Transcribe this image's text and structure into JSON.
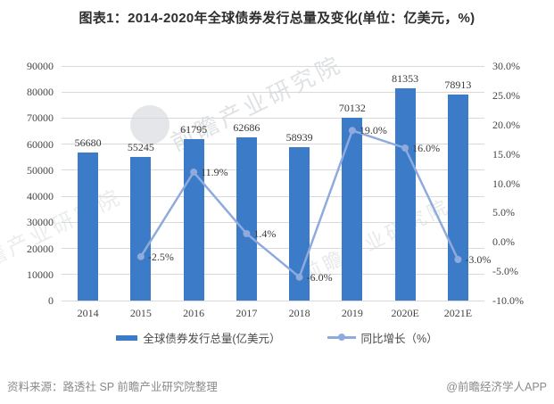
{
  "page": {
    "title": "图表1：2014-2020年全球债券发行总量及变化(单位：亿美元，%)"
  },
  "chart_data": {
    "type": "combo-bar-line",
    "categories": [
      "2014",
      "2015",
      "2016",
      "2017",
      "2018",
      "2019",
      "2020E",
      "2021E"
    ],
    "series": [
      {
        "name": "全球债券发行总量(亿美元）",
        "type": "bar",
        "axis": "left",
        "color": "#3C7BC8",
        "values": [
          56680,
          55245,
          61795,
          62686,
          58939,
          70132,
          81353,
          78913
        ],
        "labels": [
          "56680",
          "55245",
          "61795",
          "62686",
          "58939",
          "70132",
          "81353",
          "78913"
        ]
      },
      {
        "name": "同比增长（%）",
        "type": "line",
        "axis": "right",
        "color": "#8FAADC",
        "values": [
          null,
          -2.5,
          11.9,
          1.4,
          -6.0,
          19.0,
          16.0,
          -3.0
        ],
        "labels": [
          null,
          "-2.5%",
          "11.9%",
          "1.4%",
          "-6.0%",
          "19.0%",
          "16.0%",
          "-3.0%"
        ]
      }
    ],
    "left_axis": {
      "min": 0,
      "max": 90000,
      "tick_values": [
        90000,
        80000,
        70000,
        60000,
        50000,
        40000,
        30000,
        20000,
        10000,
        0
      ],
      "tick_labels": [
        "90000",
        "80000",
        "70000",
        "60000",
        "50000",
        "40000",
        "30000",
        "20000",
        "10000",
        "0"
      ]
    },
    "right_axis": {
      "min": -10,
      "max": 30,
      "tick_values": [
        30,
        25,
        20,
        15,
        10,
        5,
        0,
        -5,
        -10
      ],
      "tick_labels": [
        "30.0%",
        "25.0%",
        "20.0%",
        "15.0%",
        "10.0%",
        "5.0%",
        "0.0%",
        "-5.0%",
        "-10.0%"
      ]
    },
    "grid": "horizontal",
    "legend_position": "bottom"
  },
  "footer": {
    "source": "资料来源：路透社 SP 前瞻产业研究院整理",
    "brand": "@前瞻经济学人APP"
  },
  "watermark": {
    "text": "前瞻产业研究院"
  }
}
